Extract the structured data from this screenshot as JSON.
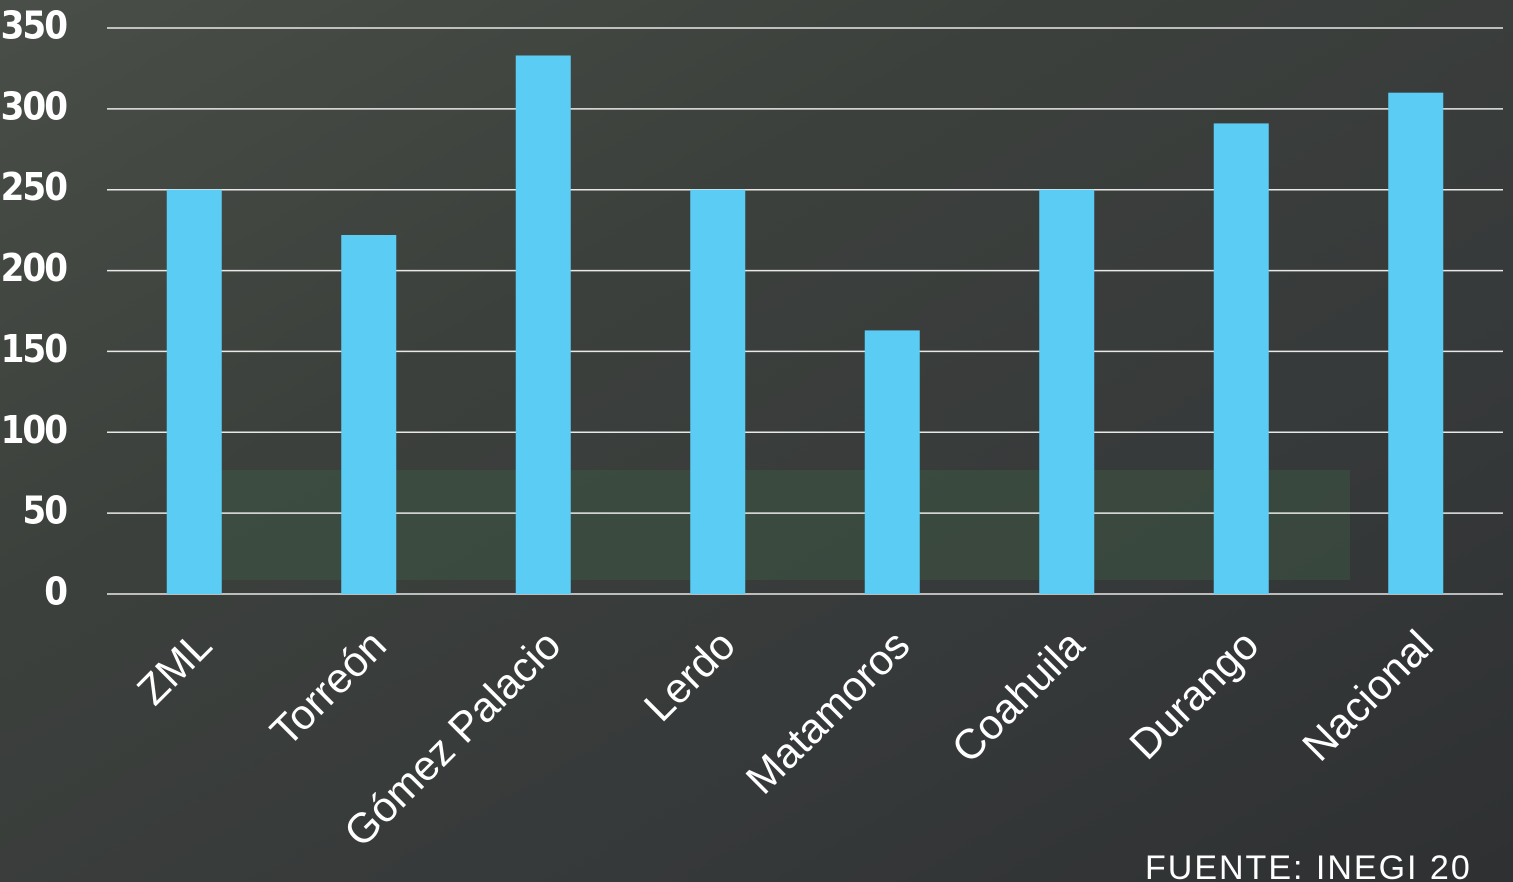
{
  "chart_data": {
    "type": "bar",
    "categories": [
      "ZML",
      "Torreón",
      "Gómez Palacio",
      "Lerdo",
      "Matamoros",
      "Coahuila",
      "Durango",
      "Nacional"
    ],
    "values": [
      250,
      222,
      333,
      250,
      163,
      250,
      291,
      310
    ],
    "color": "#5bcdf5",
    "ylim": [
      0,
      350
    ],
    "yticks": [
      0,
      50,
      100,
      150,
      200,
      250,
      300,
      350
    ],
    "grid": true,
    "source": "FUENTE: INEGI 20"
  }
}
